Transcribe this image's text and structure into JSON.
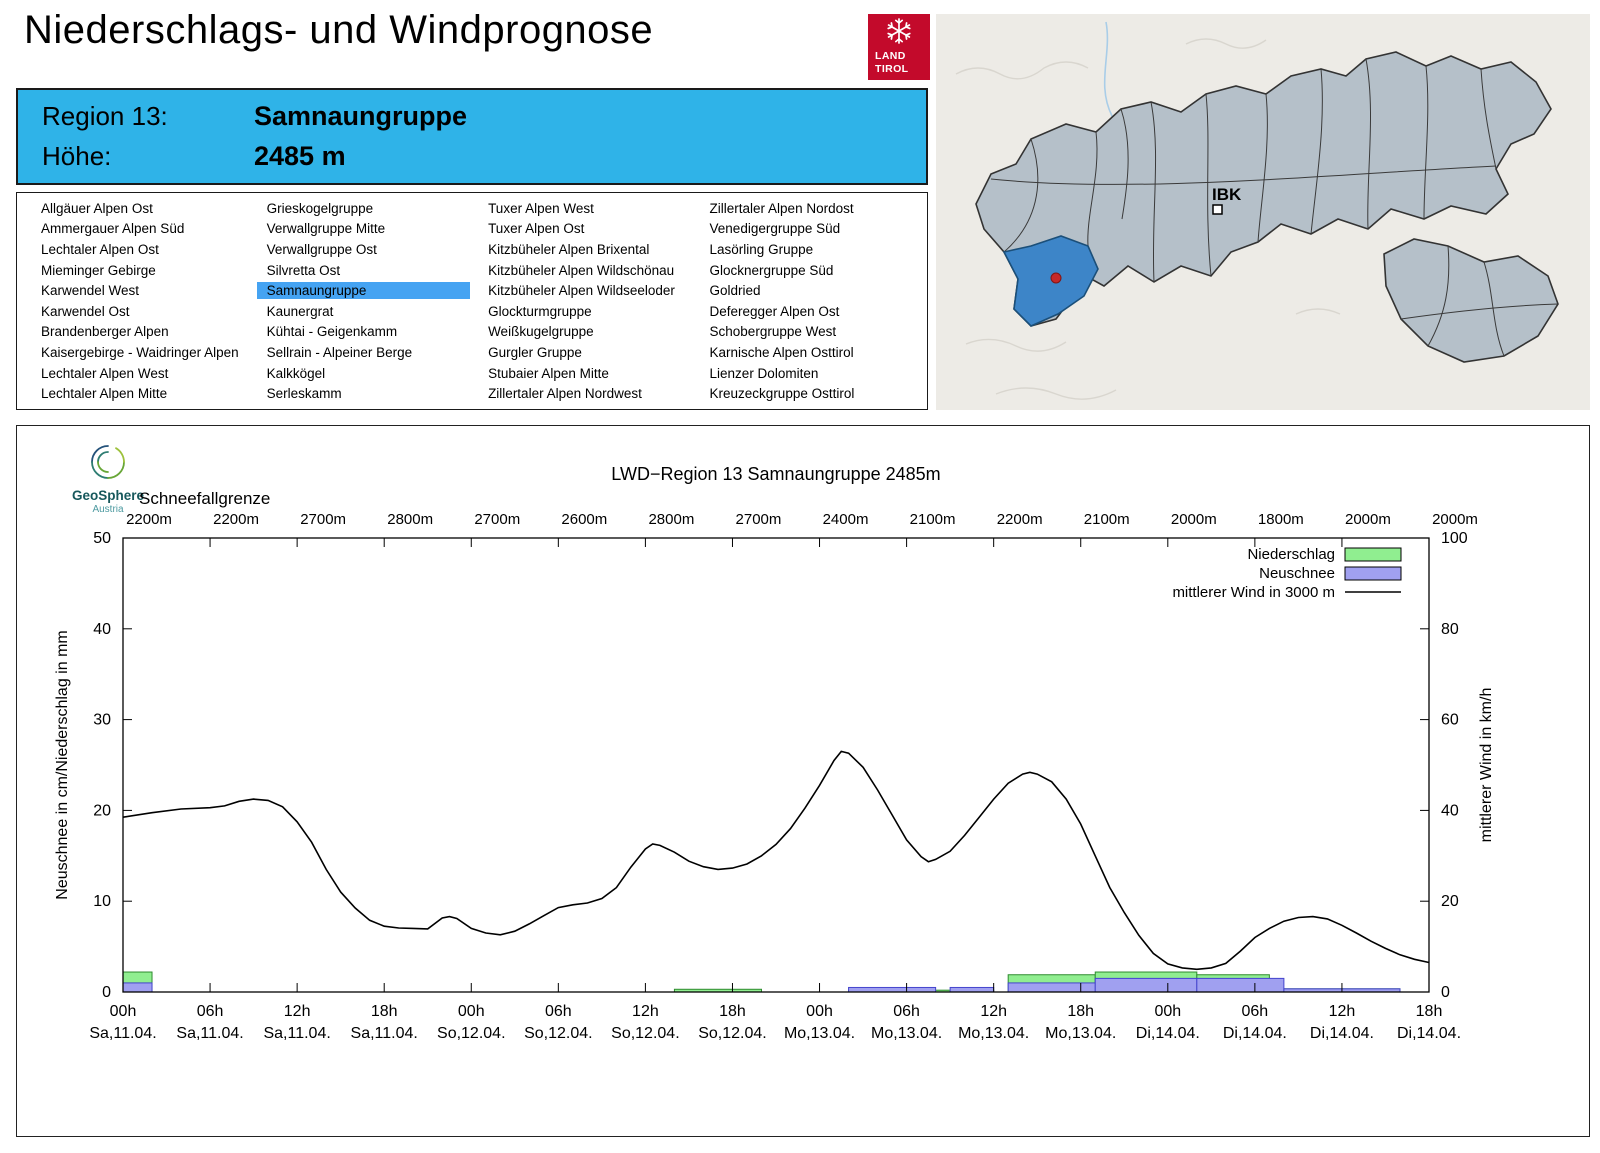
{
  "header": {
    "title": "Niederschlags- und Windprognose",
    "logo": {
      "line1": "LAND",
      "line2": "TIROL"
    }
  },
  "region_info": {
    "region_label": "Region 13:",
    "region_value": "Samnaungruppe",
    "altitude_label": "Höhe:",
    "altitude_value": "2485 m"
  },
  "region_list": {
    "selected": "Samnaungruppe",
    "columns": [
      [
        "Allgäuer Alpen Ost",
        "Ammergauer Alpen Süd",
        "Lechtaler Alpen Ost",
        "Mieminger Gebirge",
        "Karwendel West",
        "Karwendel Ost",
        "Brandenberger Alpen",
        "Kaisergebirge - Waidringer Alpen",
        "Lechtaler Alpen West",
        "Lechtaler Alpen Mitte"
      ],
      [
        "Grieskogelgruppe",
        "Verwallgruppe Mitte",
        "Verwallgruppe Ost",
        "Silvretta Ost",
        "Samnaungruppe",
        "Kaunergrat",
        "Kühtai - Geigenkamm",
        "Sellrain - Alpeiner Berge",
        "Kalkkögel",
        "Serleskamm"
      ],
      [
        "Tuxer Alpen West",
        "Tuxer Alpen Ost",
        "Kitzbüheler Alpen Brixental",
        "Kitzbüheler Alpen Wildschönau",
        "Kitzbüheler Alpen Wildseeloder",
        "Glockturmgruppe",
        "Weißkugelgruppe",
        "Gurgler Gruppe",
        "Stubaier Alpen Mitte",
        "Zillertaler Alpen Nordwest"
      ],
      [
        "Zillertaler Alpen Nordost",
        "Venedigergruppe Süd",
        "Lasörling Gruppe",
        "Glocknergruppe Süd",
        "Goldried",
        "Deferegger Alpen Ost",
        "Schobergruppe West",
        "Karnische Alpen Osttirol",
        "Lienzer Dolomiten",
        "Kreuzeckgruppe Osttirol"
      ]
    ]
  },
  "map": {
    "marker_label": "IBK"
  },
  "colors": {
    "info_box_bg": "#2fb3e8",
    "selected_item_bg": "#45a3f2",
    "logo_red": "#c30a2b",
    "map_region_fill": "#b5c0c9",
    "map_highlight_fill": "#3d85c8",
    "marker_dot_red": "#c62828",
    "bar_green": "#90ee90",
    "bar_blue": "#a0a0f0"
  },
  "chart_data": {
    "type": "bar+line",
    "title": "LWD−Region 13 Samnaungruppe 2485m",
    "branding": {
      "name": "GeoSphere",
      "sub": "Austria"
    },
    "top_axis": {
      "label": "Schneefallgrenze",
      "values": [
        "2200m",
        "2200m",
        "2700m",
        "2800m",
        "2700m",
        "2600m",
        "2800m",
        "2700m",
        "2400m",
        "2100m",
        "2200m",
        "2100m",
        "2000m",
        "1800m",
        "2000m",
        "2000m"
      ]
    },
    "x_axis": {
      "hours_range": [
        0,
        90
      ],
      "tick_interval_h": 6,
      "ticks": [
        {
          "time": "00h",
          "date": "Sa,11.04."
        },
        {
          "time": "06h",
          "date": "Sa,11.04."
        },
        {
          "time": "12h",
          "date": "Sa,11.04."
        },
        {
          "time": "18h",
          "date": "Sa,11.04."
        },
        {
          "time": "00h",
          "date": "So,12.04."
        },
        {
          "time": "06h",
          "date": "So,12.04."
        },
        {
          "time": "12h",
          "date": "So,12.04."
        },
        {
          "time": "18h",
          "date": "So,12.04."
        },
        {
          "time": "00h",
          "date": "Mo,13.04."
        },
        {
          "time": "06h",
          "date": "Mo,13.04."
        },
        {
          "time": "12h",
          "date": "Mo,13.04."
        },
        {
          "time": "18h",
          "date": "Mo,13.04."
        },
        {
          "time": "00h",
          "date": "Di,14.04."
        },
        {
          "time": "06h",
          "date": "Di,14.04."
        },
        {
          "time": "12h",
          "date": "Di,14.04."
        },
        {
          "time": "18h",
          "date": "Di,14.04."
        }
      ]
    },
    "y_left": {
      "label": "Neuschnee in cm/Niederschlag in mm",
      "min": 0,
      "max": 50,
      "ticks": [
        0,
        10,
        20,
        30,
        40,
        50
      ]
    },
    "y_right": {
      "label": "mittlerer Wind in km/h",
      "min": 0,
      "max": 100,
      "ticks": [
        0,
        20,
        40,
        60,
        80,
        100
      ]
    },
    "legend": [
      {
        "label": "Niederschlag",
        "type": "box",
        "fill": "#90ee90",
        "stroke": "#2e8b2e"
      },
      {
        "label": "Neuschnee",
        "type": "box",
        "fill": "#a0a0f0",
        "stroke": "#4444cc"
      },
      {
        "label": "mittlerer Wind in 3000 m",
        "type": "line",
        "stroke": "#000000"
      }
    ],
    "series": {
      "niederschlag_mm": [
        [
          0,
          2,
          2.2
        ],
        [
          38,
          44,
          0.3
        ],
        [
          50,
          60,
          0.2
        ],
        [
          61,
          67,
          1.9
        ],
        [
          67,
          74,
          2.2
        ],
        [
          74,
          79,
          1.9
        ],
        [
          79,
          88,
          0.35
        ]
      ],
      "neuschnee_cm": [
        [
          0,
          2,
          1.0
        ],
        [
          50,
          56,
          0.5
        ],
        [
          57,
          60,
          0.5
        ],
        [
          61,
          67,
          1.0
        ],
        [
          67,
          74,
          1.5
        ],
        [
          74,
          80,
          1.5
        ],
        [
          80,
          88,
          0.35
        ]
      ],
      "wind_kmh": [
        [
          0,
          38.5
        ],
        [
          2,
          39.5
        ],
        [
          4,
          40.3
        ],
        [
          6,
          40.6
        ],
        [
          7,
          41.0
        ],
        [
          8,
          42.0
        ],
        [
          9,
          42.5
        ],
        [
          10,
          42.2
        ],
        [
          11,
          40.8
        ],
        [
          12,
          37.5
        ],
        [
          13,
          33.0
        ],
        [
          14,
          27.0
        ],
        [
          15,
          22.0
        ],
        [
          16,
          18.5
        ],
        [
          17,
          15.8
        ],
        [
          18,
          14.5
        ],
        [
          19,
          14.1
        ],
        [
          20,
          14.0
        ],
        [
          21,
          13.9
        ],
        [
          22,
          16.3
        ],
        [
          22.5,
          16.6
        ],
        [
          23,
          16.2
        ],
        [
          24,
          14.0
        ],
        [
          25,
          13.0
        ],
        [
          26,
          12.6
        ],
        [
          27,
          13.4
        ],
        [
          28,
          15.0
        ],
        [
          29,
          16.8
        ],
        [
          30,
          18.6
        ],
        [
          31,
          19.2
        ],
        [
          32,
          19.6
        ],
        [
          33,
          20.6
        ],
        [
          34,
          23.0
        ],
        [
          35,
          27.5
        ],
        [
          36,
          31.5
        ],
        [
          36.5,
          32.6
        ],
        [
          37,
          32.3
        ],
        [
          38,
          30.8
        ],
        [
          39,
          28.8
        ],
        [
          40,
          27.6
        ],
        [
          41,
          27.0
        ],
        [
          42,
          27.3
        ],
        [
          43,
          28.2
        ],
        [
          44,
          30.0
        ],
        [
          45,
          32.5
        ],
        [
          46,
          36.0
        ],
        [
          47,
          40.5
        ],
        [
          48,
          45.5
        ],
        [
          49,
          51.0
        ],
        [
          49.5,
          53.0
        ],
        [
          50,
          52.6
        ],
        [
          51,
          49.5
        ],
        [
          52,
          44.5
        ],
        [
          53,
          39.0
        ],
        [
          54,
          33.5
        ],
        [
          55,
          29.8
        ],
        [
          55.5,
          28.7
        ],
        [
          56,
          29.2
        ],
        [
          57,
          31.0
        ],
        [
          58,
          34.5
        ],
        [
          59,
          38.5
        ],
        [
          60,
          42.5
        ],
        [
          61,
          46.0
        ],
        [
          62,
          48.0
        ],
        [
          62.5,
          48.4
        ],
        [
          63,
          48.0
        ],
        [
          64,
          46.3
        ],
        [
          65,
          42.5
        ],
        [
          66,
          37.0
        ],
        [
          67,
          30.0
        ],
        [
          68,
          23.0
        ],
        [
          69,
          17.5
        ],
        [
          70,
          12.5
        ],
        [
          71,
          8.5
        ],
        [
          72,
          6.2
        ],
        [
          73,
          5.3
        ],
        [
          74,
          5.0
        ],
        [
          75,
          5.3
        ],
        [
          76,
          6.3
        ],
        [
          77,
          9.0
        ],
        [
          78,
          12.0
        ],
        [
          79,
          14.0
        ],
        [
          80,
          15.6
        ],
        [
          81,
          16.4
        ],
        [
          82,
          16.6
        ],
        [
          83,
          16.1
        ],
        [
          84,
          14.7
        ],
        [
          85,
          13.0
        ],
        [
          86,
          11.2
        ],
        [
          87,
          9.6
        ],
        [
          88,
          8.2
        ],
        [
          89,
          7.2
        ],
        [
          90,
          6.5
        ]
      ]
    }
  }
}
